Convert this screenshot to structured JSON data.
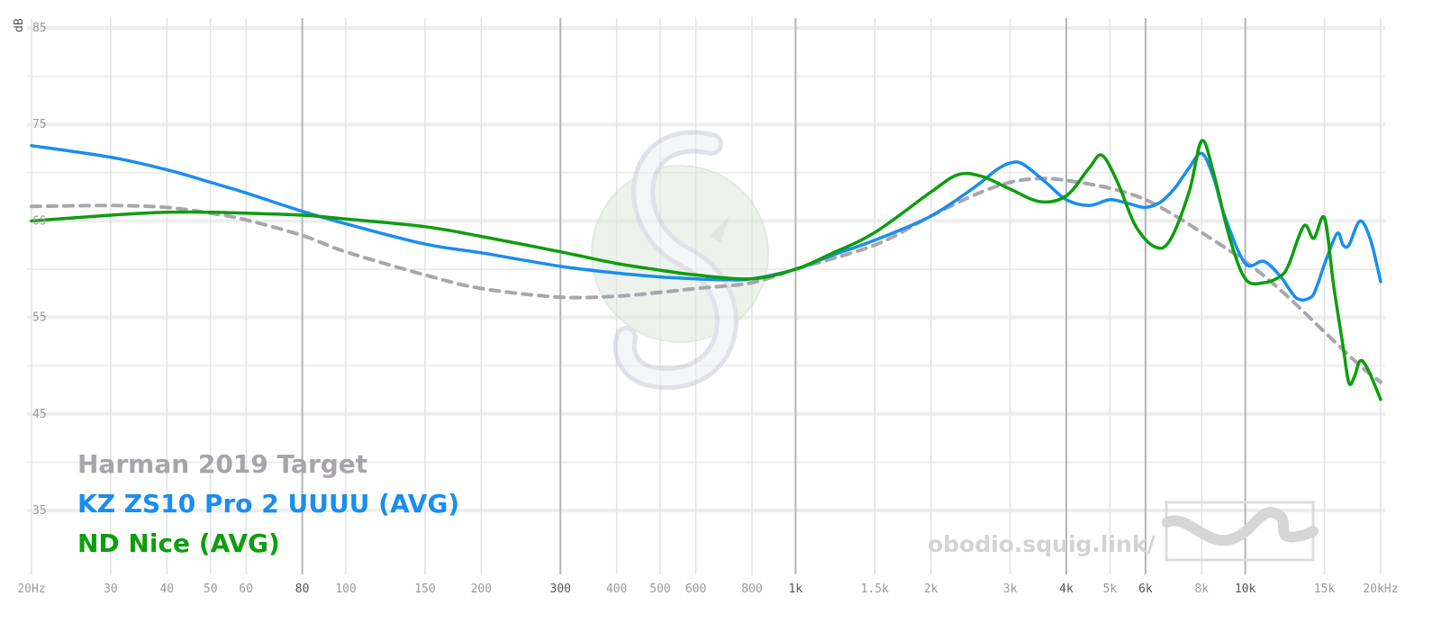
{
  "chart_data": {
    "type": "line",
    "title": "",
    "xlabel": "",
    "ylabel": "dB",
    "x_scale": "log",
    "xlim": [
      20,
      20000
    ],
    "ylim": [
      32,
      87
    ],
    "grid": true,
    "legend_position": "bottom-left",
    "x_ticks": [
      {
        "value": 20,
        "label": "20Hz",
        "major": false
      },
      {
        "value": 30,
        "label": "30",
        "major": false
      },
      {
        "value": 40,
        "label": "40",
        "major": false
      },
      {
        "value": 50,
        "label": "50",
        "major": false
      },
      {
        "value": 60,
        "label": "60",
        "major": false
      },
      {
        "value": 80,
        "label": "80",
        "major": true
      },
      {
        "value": 100,
        "label": "100",
        "major": false
      },
      {
        "value": 150,
        "label": "150",
        "major": false
      },
      {
        "value": 200,
        "label": "200",
        "major": false
      },
      {
        "value": 300,
        "label": "300",
        "major": true
      },
      {
        "value": 400,
        "label": "400",
        "major": false
      },
      {
        "value": 500,
        "label": "500",
        "major": false
      },
      {
        "value": 600,
        "label": "600",
        "major": false
      },
      {
        "value": 800,
        "label": "800",
        "major": false
      },
      {
        "value": 1000,
        "label": "1k",
        "major": true
      },
      {
        "value": 1500,
        "label": "1.5k",
        "major": false
      },
      {
        "value": 2000,
        "label": "2k",
        "major": false
      },
      {
        "value": 3000,
        "label": "3k",
        "major": false
      },
      {
        "value": 4000,
        "label": "4k",
        "major": true
      },
      {
        "value": 5000,
        "label": "5k",
        "major": false
      },
      {
        "value": 6000,
        "label": "6k",
        "major": true
      },
      {
        "value": 8000,
        "label": "8k",
        "major": false
      },
      {
        "value": 10000,
        "label": "10k",
        "major": true
      },
      {
        "value": 15000,
        "label": "15k",
        "major": false
      },
      {
        "value": 20000,
        "label": "20kHz",
        "major": false
      }
    ],
    "y_ticks": [
      85,
      75,
      65,
      55,
      45,
      35
    ],
    "series": [
      {
        "name": "Harman 2019 Target",
        "color": "#aaa6ad",
        "dashed": true,
        "points": [
          [
            20,
            66.5
          ],
          [
            30,
            66.6
          ],
          [
            40,
            66.4
          ],
          [
            50,
            65.8
          ],
          [
            60,
            65.1
          ],
          [
            80,
            63.5
          ],
          [
            100,
            61.8
          ],
          [
            150,
            59.4
          ],
          [
            200,
            58.0
          ],
          [
            300,
            57.1
          ],
          [
            400,
            57.2
          ],
          [
            500,
            57.6
          ],
          [
            600,
            58.0
          ],
          [
            800,
            58.6
          ],
          [
            1000,
            60.0
          ],
          [
            1500,
            62.5
          ],
          [
            2000,
            65.5
          ],
          [
            2500,
            67.7
          ],
          [
            3000,
            69.0
          ],
          [
            3500,
            69.4
          ],
          [
            4000,
            69.2
          ],
          [
            5000,
            68.4
          ],
          [
            6000,
            67.2
          ],
          [
            7000,
            65.5
          ],
          [
            8000,
            63.8
          ],
          [
            10000,
            60.8
          ],
          [
            12000,
            57.8
          ],
          [
            15000,
            53.5
          ],
          [
            18000,
            50.0
          ],
          [
            20000,
            48.3
          ]
        ]
      },
      {
        "name": "KZ ZS10 Pro 2 UUUU (AVG)",
        "color": "#1a8df0",
        "dashed": false,
        "points": [
          [
            20,
            72.8
          ],
          [
            30,
            71.6
          ],
          [
            40,
            70.3
          ],
          [
            50,
            69.0
          ],
          [
            60,
            67.9
          ],
          [
            80,
            66.0
          ],
          [
            100,
            64.7
          ],
          [
            150,
            62.6
          ],
          [
            200,
            61.7
          ],
          [
            300,
            60.3
          ],
          [
            400,
            59.6
          ],
          [
            500,
            59.2
          ],
          [
            600,
            59.0
          ],
          [
            700,
            58.9
          ],
          [
            800,
            59.0
          ],
          [
            1000,
            60.0
          ],
          [
            1200,
            61.4
          ],
          [
            1500,
            63.0
          ],
          [
            2000,
            65.5
          ],
          [
            2500,
            68.5
          ],
          [
            2800,
            70.3
          ],
          [
            3000,
            71.0
          ],
          [
            3200,
            70.9
          ],
          [
            3600,
            69.0
          ],
          [
            4000,
            67.2
          ],
          [
            4500,
            66.6
          ],
          [
            5000,
            67.2
          ],
          [
            5500,
            66.8
          ],
          [
            6000,
            66.4
          ],
          [
            6500,
            67.0
          ],
          [
            7000,
            68.5
          ],
          [
            7500,
            70.5
          ],
          [
            8000,
            72.0
          ],
          [
            8500,
            69.5
          ],
          [
            9000,
            65.5
          ],
          [
            10000,
            60.6
          ],
          [
            11000,
            60.8
          ],
          [
            12000,
            59.2
          ],
          [
            13000,
            57.0
          ],
          [
            14000,
            57.1
          ],
          [
            14500,
            58.5
          ],
          [
            15000,
            60.5
          ],
          [
            16000,
            63.7
          ],
          [
            16500,
            62.5
          ],
          [
            17000,
            62.5
          ],
          [
            18000,
            65.0
          ],
          [
            19000,
            63.0
          ],
          [
            20000,
            58.7
          ]
        ]
      },
      {
        "name": "ND Nice (AVG)",
        "color": "#0d9e0d",
        "dashed": false,
        "points": [
          [
            20,
            65.0
          ],
          [
            30,
            65.6
          ],
          [
            40,
            65.9
          ],
          [
            50,
            65.9
          ],
          [
            60,
            65.8
          ],
          [
            80,
            65.6
          ],
          [
            100,
            65.2
          ],
          [
            150,
            64.4
          ],
          [
            200,
            63.4
          ],
          [
            300,
            61.8
          ],
          [
            400,
            60.6
          ],
          [
            500,
            59.9
          ],
          [
            600,
            59.4
          ],
          [
            800,
            59.0
          ],
          [
            1000,
            60.0
          ],
          [
            1200,
            61.6
          ],
          [
            1500,
            63.8
          ],
          [
            2000,
            68.0
          ],
          [
            2300,
            69.8
          ],
          [
            2600,
            69.6
          ],
          [
            3000,
            68.3
          ],
          [
            3500,
            67.0
          ],
          [
            4000,
            67.6
          ],
          [
            4500,
            70.5
          ],
          [
            4800,
            71.8
          ],
          [
            5200,
            69.0
          ],
          [
            5700,
            64.5
          ],
          [
            6300,
            62.3
          ],
          [
            6800,
            63.0
          ],
          [
            7500,
            68.0
          ],
          [
            8000,
            73.3
          ],
          [
            8500,
            70.0
          ],
          [
            9200,
            63.5
          ],
          [
            10000,
            59.0
          ],
          [
            11000,
            58.6
          ],
          [
            12000,
            59.3
          ],
          [
            12500,
            60.5
          ],
          [
            13500,
            64.5
          ],
          [
            14200,
            63.2
          ],
          [
            15000,
            65.3
          ],
          [
            15700,
            58.5
          ],
          [
            16500,
            52.0
          ],
          [
            17000,
            48.2
          ],
          [
            17500,
            48.9
          ],
          [
            18000,
            50.5
          ],
          [
            18700,
            49.7
          ],
          [
            20000,
            46.5
          ]
        ]
      }
    ]
  },
  "legend": {
    "items": [
      {
        "label": "Harman 2019 Target",
        "color": "#a8a4ab"
      },
      {
        "label": "KZ ZS10 Pro 2 UUUU (AVG)",
        "color": "#1a8df0"
      },
      {
        "label": "ND Nice (AVG)",
        "color": "#0d9e0d"
      }
    ]
  },
  "watermark": {
    "url": "obodio.squig.link/",
    "logo_icon": "squiglink-wave-icon",
    "center_logo_icon": "squiglink-s-logo-icon"
  }
}
